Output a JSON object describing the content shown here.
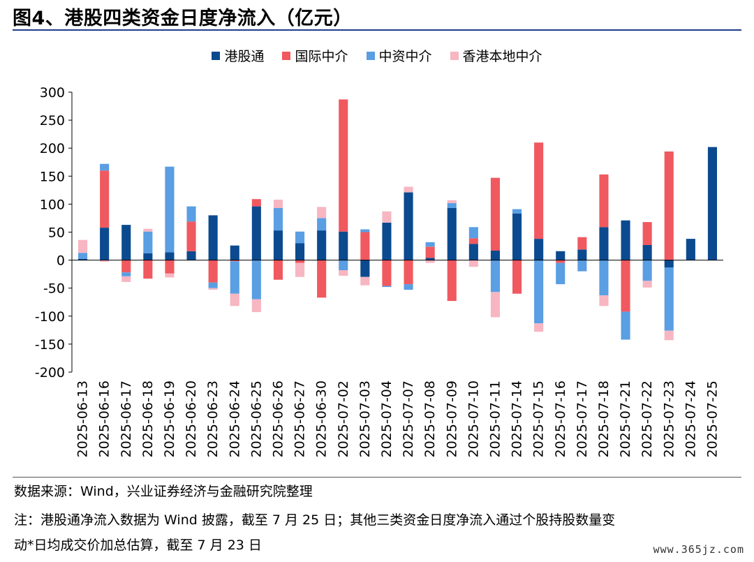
{
  "title": "图4、港股四类资金日度净流入（亿元）",
  "notes": {
    "source": "数据来源：Wind，兴业证券经济与金融研究院整理",
    "note1": "注：港股通净流入数据为 Wind 披露，截至 7 月 25 日；其他三类资金日度净流入通过个股持股数量变",
    "note2": "动*日均成交价加总估算，截至 7 月 23 日"
  },
  "watermark": "www.365jz.com",
  "chart_data": {
    "type": "bar",
    "stacked": true,
    "ylim": [
      -200,
      300
    ],
    "yticks": [
      300,
      250,
      200,
      150,
      100,
      50,
      0,
      -50,
      -100,
      -150,
      -200
    ],
    "categories": [
      "2025-06-13",
      "2025-06-16",
      "2025-06-17",
      "2025-06-18",
      "2025-06-19",
      "2025-06-20",
      "2025-06-23",
      "2025-06-24",
      "2025-06-25",
      "2025-06-26",
      "2025-06-27",
      "2025-06-30",
      "2025-07-02",
      "2025-07-03",
      "2025-07-04",
      "2025-07-07",
      "2025-07-08",
      "2025-07-09",
      "2025-07-10",
      "2025-07-11",
      "2025-07-14",
      "2025-07-15",
      "2025-07-16",
      "2025-07-17",
      "2025-07-18",
      "2025-07-21",
      "2025-07-22",
      "2025-07-23",
      "2025-07-24",
      "2025-07-25"
    ],
    "series": [
      {
        "name": "港股通",
        "color": "#0b4a8f",
        "values": [
          2,
          58,
          63,
          12,
          14,
          16,
          80,
          26,
          96,
          53,
          30,
          53,
          51,
          -30,
          67,
          121,
          4,
          93,
          29,
          17,
          83,
          38,
          16,
          19,
          59,
          71,
          27,
          -13,
          38,
          202
        ]
      },
      {
        "name": "国际中介",
        "color": "#f0595f",
        "values": [
          0,
          102,
          -22,
          -33,
          -24,
          53,
          -40,
          -2,
          13,
          -35,
          -5,
          -67,
          236,
          50,
          -46,
          -43,
          20,
          -73,
          10,
          130,
          -60,
          172,
          -5,
          22,
          94,
          -92,
          41,
          194,
          0,
          0
        ]
      },
      {
        "name": "中资中介",
        "color": "#5a9ee3",
        "values": [
          11,
          12,
          -7,
          39,
          153,
          27,
          -10,
          -58,
          -70,
          40,
          21,
          22,
          -18,
          5,
          -2,
          -10,
          8,
          9,
          20,
          -57,
          8,
          -113,
          -38,
          -20,
          -63,
          -50,
          -37,
          -113,
          0,
          0
        ]
      },
      {
        "name": "香港本地中介",
        "color": "#f7b6c2",
        "values": [
          23,
          -3,
          -10,
          5,
          -7,
          0,
          -3,
          -22,
          -23,
          15,
          -25,
          20,
          -10,
          -15,
          20,
          10,
          -5,
          5,
          -12,
          -45,
          0,
          -15,
          0,
          0,
          -19,
          0,
          -12,
          -17,
          0,
          0
        ]
      }
    ]
  }
}
